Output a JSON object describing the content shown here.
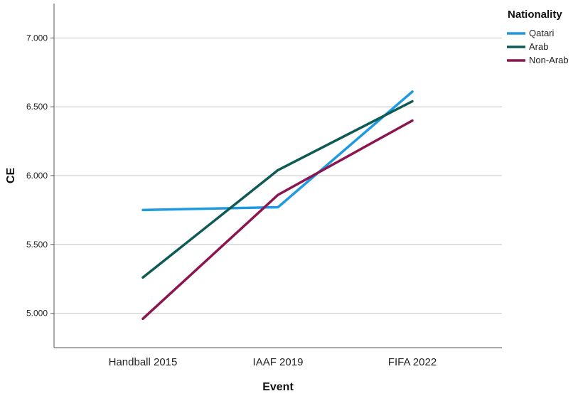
{
  "chart_data": {
    "type": "line",
    "xlabel": "Event",
    "ylabel": "CE",
    "categories": [
      "Handball 2015",
      "IAAF 2019",
      "FIFA 2022"
    ],
    "ylim": [
      4.75,
      7.25
    ],
    "yticks": [
      5.0,
      5.5,
      6.0,
      6.5,
      7.0
    ],
    "ytick_labels": [
      "5.000",
      "5.500",
      "6.000",
      "6.500",
      "7.000"
    ],
    "grid": "horizontal",
    "legend": {
      "title": "Nationality",
      "placement": "top-right"
    },
    "series": [
      {
        "name": "Qatari",
        "color": "#1f9ae0",
        "values": [
          5.75,
          5.77,
          6.61
        ]
      },
      {
        "name": "Arab",
        "color": "#0e5a57",
        "values": [
          5.26,
          6.04,
          6.54
        ]
      },
      {
        "name": "Non-Arab",
        "color": "#8c1550",
        "values": [
          4.96,
          5.86,
          6.4
        ]
      }
    ]
  }
}
